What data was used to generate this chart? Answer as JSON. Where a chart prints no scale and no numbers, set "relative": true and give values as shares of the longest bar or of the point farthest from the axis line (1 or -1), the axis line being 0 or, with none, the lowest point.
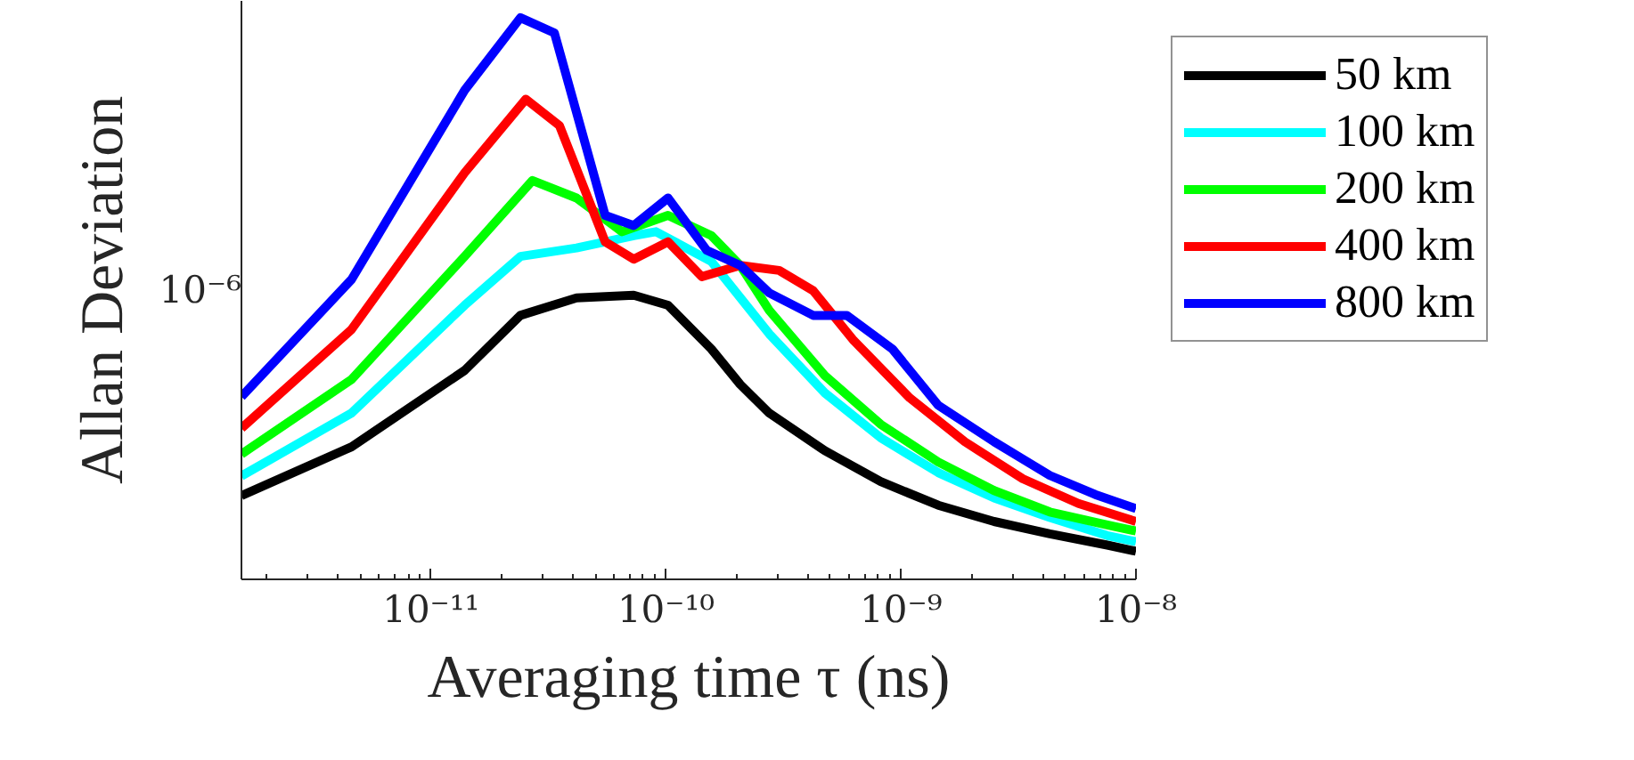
{
  "chart_data": {
    "type": "line",
    "xlabel": "Averaging time τ (ns)",
    "ylabel": "Allan Deviation",
    "annotations": [
      "10⁻⁶"
    ],
    "relative": true,
    "log": "x",
    "grid": false,
    "legend": "right",
    "line_style": "solid",
    "marker": "none",
    "xlim": [
      1.56e-12,
      1e-08
    ],
    "xticks": [
      {
        "value": 1e-11,
        "label": "10⁻¹¹"
      },
      {
        "value": 1e-10,
        "label": "10⁻¹⁰"
      },
      {
        "value": 1e-09,
        "label": "10⁻⁹"
      },
      {
        "value": 1e-08,
        "label": "10⁻⁸"
      }
    ],
    "series": [
      {
        "name": "50 km",
        "color": "#000000",
        "x": [
          1.56e-12,
          4.59e-12,
          1.39e-11,
          2.4e-11,
          4.16e-11,
          7.29e-11,
          1.02e-10,
          1.56e-10,
          2.07e-10,
          2.75e-10,
          4.74e-10,
          8.2e-10,
          1.44e-09,
          2.49e-09,
          4.3e-09,
          7.55e-09,
          1e-08
        ],
        "values": [
          0.149,
          0.236,
          0.372,
          0.47,
          0.501,
          0.506,
          0.488,
          0.41,
          0.347,
          0.296,
          0.229,
          0.174,
          0.132,
          0.103,
          0.081,
          0.061,
          0.05
        ]
      },
      {
        "name": "100 km",
        "color": "#00ffff",
        "x": [
          1.56e-12,
          4.59e-12,
          1.39e-11,
          2.4e-11,
          4.16e-11,
          7.29e-11,
          9.06e-11,
          1.56e-10,
          2.75e-10,
          4.74e-10,
          8.2e-10,
          1.44e-09,
          2.49e-09,
          4.3e-09,
          7.55e-09,
          1e-08
        ],
        "values": [
          0.184,
          0.296,
          0.488,
          0.575,
          0.59,
          0.612,
          0.619,
          0.566,
          0.437,
          0.332,
          0.252,
          0.19,
          0.145,
          0.11,
          0.078,
          0.067
        ]
      },
      {
        "name": "200 km",
        "color": "#00ff00",
        "x": [
          1.56e-12,
          4.59e-12,
          1.39e-11,
          2.7e-11,
          4.16e-11,
          6.5e-11,
          1.02e-10,
          1.56e-10,
          2.07e-10,
          2.75e-10,
          4.74e-10,
          8.2e-10,
          1.44e-09,
          2.49e-09,
          4.3e-09,
          7.55e-09,
          1e-08
        ],
        "values": [
          0.223,
          0.356,
          0.575,
          0.71,
          0.679,
          0.619,
          0.648,
          0.612,
          0.559,
          0.479,
          0.363,
          0.276,
          0.209,
          0.158,
          0.12,
          0.097,
          0.086
        ]
      },
      {
        "name": "400 km",
        "color": "#ff0000",
        "x": [
          1.56e-12,
          4.59e-12,
          1.39e-11,
          2.53e-11,
          3.52e-11,
          5.51e-11,
          7.29e-11,
          1.02e-10,
          1.42e-10,
          2.07e-10,
          3.03e-10,
          4.23e-10,
          6.3e-10,
          1.09e-09,
          1.87e-09,
          3.3e-09,
          5.69e-09,
          1e-08
        ],
        "values": [
          0.269,
          0.445,
          0.724,
          0.855,
          0.808,
          0.601,
          0.57,
          0.601,
          0.539,
          0.559,
          0.55,
          0.514,
          0.425,
          0.323,
          0.245,
          0.179,
          0.135,
          0.103
        ]
      },
      {
        "name": "800 km",
        "color": "#0000ff",
        "x": [
          1.56e-12,
          4.59e-12,
          1.39e-11,
          2.4e-11,
          3.35e-11,
          5.51e-11,
          7.29e-11,
          1.02e-10,
          1.49e-10,
          2.07e-10,
          2.75e-10,
          4.23e-10,
          5.89e-10,
          9.2e-10,
          1.44e-09,
          2.49e-09,
          4.3e-09,
          6.71e-09,
          1e-08
        ],
        "values": [
          0.325,
          0.534,
          0.871,
          1,
          0.973,
          0.648,
          0.63,
          0.679,
          0.586,
          0.559,
          0.51,
          0.47,
          0.47,
          0.41,
          0.31,
          0.245,
          0.185,
          0.151,
          0.126
        ]
      }
    ]
  }
}
